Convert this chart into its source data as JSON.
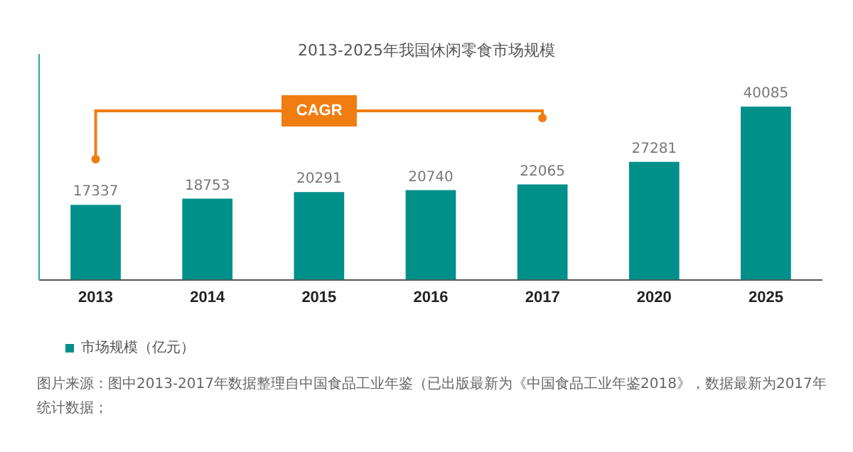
{
  "chart_data": {
    "type": "bar",
    "title": "2013-2025年我国休闲零食市场规模",
    "categories": [
      "2013",
      "2014",
      "2015",
      "2016",
      "2017",
      "2020",
      "2025"
    ],
    "series": [
      {
        "name": "市场规模（亿元）",
        "color": "#00908a",
        "values": [
          17337,
          18753,
          20291,
          20740,
          22065,
          27281,
          40085
        ]
      }
    ],
    "data_labels": true,
    "legend": "bottom left",
    "grid": false,
    "annotations": [
      "CAGR",
      "图片来源：图中2013-2017年数据整理自中国食品工业年鉴（已出版最新为《中国食品工业年鉴2018》，数据最新为2017年统计数据；"
    ]
  }
}
